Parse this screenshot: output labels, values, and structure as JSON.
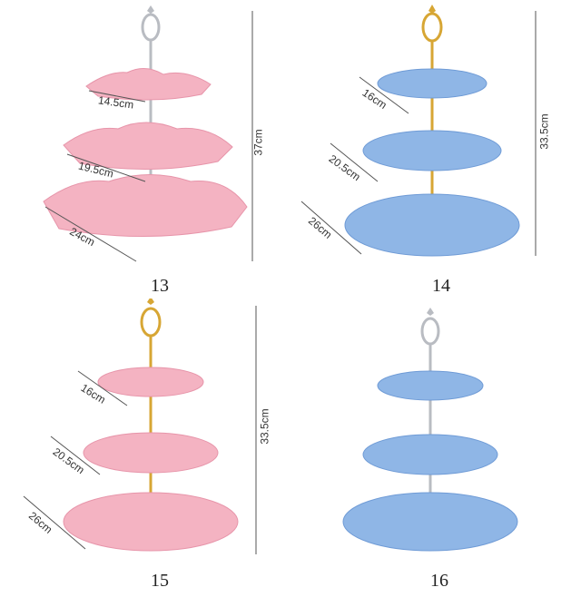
{
  "items": [
    {
      "number": "13",
      "color": "pink",
      "dims": [
        "14.5cm",
        "19.5cm",
        "24cm"
      ],
      "height": "37cm"
    },
    {
      "number": "14",
      "color": "blue",
      "dims": [
        "16cm",
        "20.5cm",
        "26cm"
      ],
      "height": "33.5cm"
    },
    {
      "number": "15",
      "color": "pink",
      "dims": [
        "16cm",
        "20.5cm",
        "26cm"
      ],
      "height": "33.5cm"
    },
    {
      "number": "16",
      "color": "blue"
    }
  ],
  "colors": {
    "pink": "#f4b3c2",
    "pink_dark": "#e795aa",
    "blue": "#8fb6e6",
    "blue_dark": "#6f9bd6",
    "gold": "#d7a634",
    "silver": "#b9bcc2"
  }
}
